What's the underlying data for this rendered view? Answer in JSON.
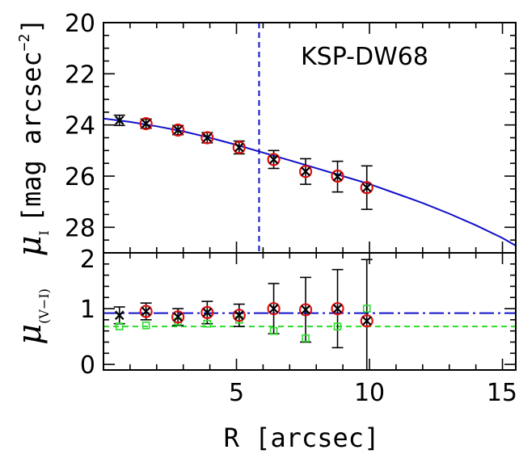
{
  "chart_data": [
    {
      "type": "scatter",
      "title": "",
      "annotation": "KSP-DW68",
      "xlabel": "R [arcsec]",
      "ylabel": {
        "symbol": "μ",
        "subscript": "I",
        "text": "[mag arcsec",
        "exponent": "−2",
        "close": "]"
      },
      "xlim": [
        0,
        15.5
      ],
      "ylim": [
        29,
        20
      ],
      "y_inverted": true,
      "xticks": [
        5,
        10,
        15
      ],
      "yticks": [
        20,
        22,
        24,
        26,
        28
      ],
      "vline_x": 5.85,
      "model_curve": {
        "x": [
          0,
          1,
          2,
          3,
          4,
          5,
          6,
          7,
          8,
          9,
          10,
          11,
          12,
          13,
          14,
          15,
          15.5
        ],
        "y": [
          23.75,
          23.88,
          24.05,
          24.25,
          24.5,
          24.78,
          25.08,
          25.38,
          25.69,
          26.0,
          26.31,
          26.68,
          27.05,
          27.47,
          27.92,
          28.42,
          28.72
        ]
      },
      "series": [
        {
          "name": "",
          "marker": "x",
          "x": [
            0.6,
            1.6,
            2.8,
            3.9,
            5.1,
            6.4,
            7.6,
            8.8,
            9.9
          ],
          "y": [
            23.82,
            23.95,
            24.2,
            24.5,
            24.88,
            25.35,
            25.82,
            26.02,
            26.45
          ],
          "yerr": [
            0.2,
            0.18,
            0.18,
            0.2,
            0.25,
            0.35,
            0.5,
            0.6,
            0.85
          ]
        },
        {
          "name": "",
          "marker": "circle",
          "x": [
            1.6,
            2.8,
            3.9,
            5.1,
            6.4,
            7.6,
            8.8,
            9.9
          ],
          "y": [
            23.95,
            24.2,
            24.5,
            24.88,
            25.35,
            25.82,
            26.0,
            26.45
          ]
        }
      ]
    },
    {
      "type": "scatter",
      "title": "",
      "xlabel": "R [arcsec]",
      "ylabel": {
        "symbol": "μ",
        "subscript": "(V−I)"
      },
      "xlim": [
        0,
        15.5
      ],
      "ylim": [
        -0.1,
        2.0
      ],
      "xticks": [
        5,
        10,
        15
      ],
      "yticks": [
        0,
        1,
        2
      ],
      "hline_blue": 0.92,
      "hline_green": 0.68,
      "series": [
        {
          "name": "",
          "marker": "x",
          "x": [
            0.6,
            1.6,
            2.8,
            3.9,
            5.1,
            6.4,
            7.6,
            8.8,
            9.9
          ],
          "y": [
            0.88,
            0.95,
            0.85,
            0.93,
            0.88,
            1.0,
            0.98,
            1.0,
            0.78
          ],
          "yerr": [
            0.15,
            0.15,
            0.15,
            0.2,
            0.2,
            0.45,
            0.58,
            0.7,
            1.1
          ]
        },
        {
          "name": "",
          "marker": "circle",
          "x": [
            1.6,
            2.8,
            3.9,
            5.1,
            6.4,
            7.6,
            8.8,
            9.9
          ],
          "y": [
            0.95,
            0.85,
            0.93,
            0.88,
            1.0,
            0.98,
            1.0,
            0.78
          ]
        },
        {
          "name": "",
          "marker": "square",
          "x": [
            0.6,
            1.6,
            2.8,
            3.9,
            5.1,
            6.4,
            7.6,
            8.8,
            9.9
          ],
          "y": [
            0.68,
            0.7,
            0.77,
            0.73,
            0.8,
            0.6,
            0.47,
            0.68,
            1.0
          ]
        }
      ]
    }
  ],
  "colors": {
    "model": "#1010c8",
    "green": "#2bdc2b",
    "red": "#e01010",
    "black": "#000000"
  }
}
